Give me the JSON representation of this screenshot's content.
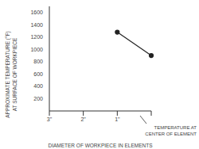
{
  "chart_data": {
    "type": "line",
    "y_label": "APPROXIMATE TEMPERATURE (°F)\nAT SURFACE OF WORKPIECE",
    "x_label": "DIAMETER OF WORKPIECE IN ELEMENTS",
    "annotation": "TEMPERATURE AT\nCENTER OF ELEMENT",
    "categories": [
      "3\"",
      "2\"",
      "1\"",
      null
    ],
    "values": [
      null,
      null,
      1280,
      900
    ],
    "color": "#222222",
    "marker": "circle",
    "ylim": [
      0,
      1700
    ],
    "yticks": [
      200,
      400,
      600,
      800,
      1000,
      1200,
      1400,
      1600
    ],
    "grid": false
  }
}
